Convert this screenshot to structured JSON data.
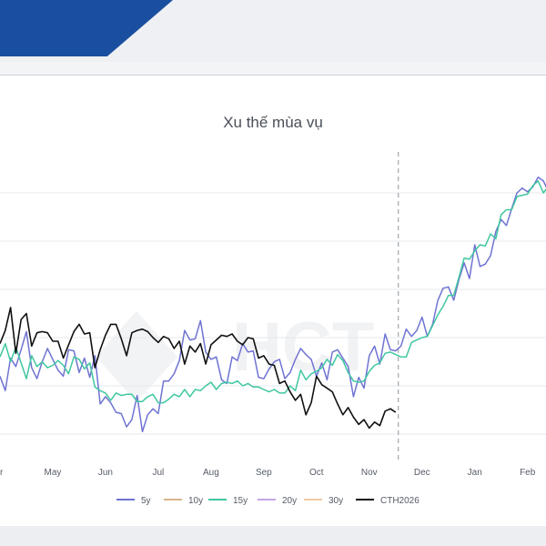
{
  "chart_data": {
    "type": "line",
    "title": "Xu thế mùa vụ",
    "xlabel": "",
    "ylabel": "",
    "x_ticks": [
      "Apr",
      "May",
      "Jun",
      "Jul",
      "Aug",
      "Sep",
      "Oct",
      "Nov",
      "Dec",
      "Jan",
      "Feb"
    ],
    "x_tick_display": [
      "r",
      "May",
      "Jun",
      "Jul",
      "Aug",
      "Sep",
      "Oct",
      "Nov",
      "Dec",
      "Jan",
      "Feb"
    ],
    "today_marker": 7.55,
    "grid": "horizontal",
    "legend_position": "bottom",
    "watermark": "HCT",
    "colors": {
      "5y": "#6f73d2",
      "10y": "#d9b48a",
      "15y": "#3fc7a0",
      "20y": "#c5a4e6",
      "30y": "#f0c8a0",
      "CTH2026": "#111111"
    },
    "series": [
      {
        "name": "5y",
        "x": [
          0.0,
          0.1,
          0.2,
          0.3,
          0.4,
          0.5,
          0.6,
          0.7,
          0.8,
          0.9,
          1.0,
          1.1,
          1.2,
          1.3,
          1.4,
          1.5,
          1.6,
          1.7,
          1.8,
          1.9,
          2.0,
          2.1,
          2.2,
          2.3,
          2.4,
          2.5,
          2.6,
          2.7,
          2.8,
          2.9,
          3.0,
          3.1,
          3.2,
          3.3,
          3.4,
          3.5,
          3.6,
          3.7,
          3.8,
          3.9,
          4.0,
          4.1,
          4.2,
          4.3,
          4.4,
          4.5,
          4.6,
          4.7,
          4.8,
          4.9,
          5.0,
          5.1,
          5.2,
          5.3,
          5.4,
          5.5,
          5.6,
          5.7,
          5.8,
          5.9,
          6.0,
          6.1,
          6.2,
          6.3,
          6.4,
          6.5,
          6.6,
          6.7,
          6.8,
          6.9,
          7.0,
          7.1,
          7.2,
          7.3,
          7.4,
          7.5,
          7.6,
          7.7,
          7.8,
          7.9,
          8.0,
          8.1,
          8.2,
          8.3,
          8.4,
          8.5,
          8.6,
          8.7,
          8.8,
          8.9,
          9.0,
          9.1,
          9.2,
          9.3,
          9.4,
          9.5,
          9.6,
          9.7,
          9.8,
          9.9,
          10.0,
          10.1,
          10.2,
          10.3,
          10.4
        ],
        "values": [
          4.8,
          3.6,
          6.3,
          5.6,
          7.0,
          8.5,
          5.5,
          4.6,
          6.0,
          7.1,
          6.2,
          5.3,
          4.8,
          7.0,
          6.9,
          5.1,
          6.3,
          4.7,
          6.5,
          2.5,
          3.1,
          2.6,
          1.8,
          1.7,
          0.6,
          1.2,
          3.2,
          0.2,
          1.6,
          2.1,
          1.7,
          4.4,
          4.4,
          5.0,
          6.1,
          8.6,
          7.8,
          7.9,
          9.4,
          6.8,
          6.2,
          6.4,
          4.5,
          4.2,
          6.4,
          6.1,
          7.5,
          6.8,
          6.9,
          4.7,
          4.6,
          5.4,
          6.0,
          6.2,
          4.6,
          5.1,
          6.2,
          7.1,
          6.6,
          6.2,
          4.8,
          5.9,
          4.5,
          6.8,
          7.0,
          6.3,
          5.6,
          3.1,
          4.7,
          3.8,
          6.5,
          7.3,
          5.8,
          8.3,
          7.0,
          6.9,
          7.3,
          8.7,
          8.1,
          8.6,
          9.7,
          8.1,
          9.1,
          11.1,
          12.1,
          12.2,
          11.1,
          12.8,
          14.2,
          12.9,
          15.7,
          13.9,
          14.1,
          14.8,
          16.8,
          17.8,
          17.3,
          18.7,
          20.0,
          20.4,
          20.1,
          20.5,
          21.3,
          21.0,
          20.1
        ]
      },
      {
        "name": "10y",
        "x": [],
        "values": []
      },
      {
        "name": "15y",
        "x": [
          0.0,
          0.1,
          0.2,
          0.3,
          0.4,
          0.5,
          0.6,
          0.7,
          0.8,
          0.9,
          1.0,
          1.1,
          1.2,
          1.3,
          1.4,
          1.5,
          1.6,
          1.7,
          1.8,
          1.9,
          2.0,
          2.1,
          2.2,
          2.3,
          2.4,
          2.5,
          2.6,
          2.7,
          2.8,
          2.9,
          3.0,
          3.1,
          3.2,
          3.3,
          3.4,
          3.5,
          3.6,
          3.7,
          3.8,
          3.9,
          4.0,
          4.1,
          4.2,
          4.3,
          4.4,
          4.5,
          4.6,
          4.7,
          4.8,
          4.9,
          5.0,
          5.1,
          5.2,
          5.3,
          5.4,
          5.5,
          5.6,
          5.7,
          5.8,
          5.9,
          6.0,
          6.1,
          6.2,
          6.3,
          6.4,
          6.5,
          6.6,
          6.7,
          6.8,
          6.9,
          7.0,
          7.1,
          7.2,
          7.3,
          7.4,
          7.5,
          7.6,
          7.7,
          7.8,
          7.9,
          8.0,
          8.1,
          8.2,
          8.3,
          8.4,
          8.5,
          8.6,
          8.7,
          8.8,
          8.9,
          9.0,
          9.1,
          9.2,
          9.3,
          9.4,
          9.5,
          9.6,
          9.7,
          9.8,
          9.9,
          10.0,
          10.1,
          10.2,
          10.3,
          10.4
        ],
        "values": [
          6.4,
          7.5,
          6.0,
          7.2,
          5.9,
          4.6,
          6.5,
          5.6,
          6.0,
          5.5,
          5.7,
          6.1,
          5.7,
          5.0,
          6.4,
          6.2,
          5.4,
          5.9,
          3.9,
          3.6,
          3.4,
          2.8,
          3.4,
          3.2,
          3.3,
          3.3,
          2.7,
          2.7,
          3.1,
          3.3,
          2.6,
          2.6,
          2.9,
          3.3,
          3.1,
          3.7,
          3.1,
          3.7,
          3.6,
          4.0,
          4.3,
          3.7,
          4.2,
          4.3,
          4.2,
          4.4,
          4.0,
          4.2,
          3.9,
          3.9,
          3.7,
          3.5,
          3.7,
          3.4,
          3.4,
          4.0,
          3.6,
          5.3,
          4.5,
          5.0,
          5.2,
          5.5,
          6.2,
          5.7,
          6.6,
          6.1,
          5.1,
          4.4,
          4.3,
          4.4,
          5.2,
          5.7,
          5.9,
          6.7,
          6.8,
          6.6,
          6.4,
          6.4,
          7.6,
          7.8,
          8.0,
          8.1,
          9.0,
          9.9,
          10.6,
          11.5,
          11.5,
          13.0,
          14.6,
          14.5,
          15.2,
          15.7,
          15.6,
          16.6,
          16.2,
          18.2,
          18.6,
          18.6,
          19.7,
          19.8,
          19.9,
          20.6,
          21.0,
          20.0,
          20.6
        ]
      },
      {
        "name": "20y",
        "x": [],
        "values": []
      },
      {
        "name": "30y",
        "x": [],
        "values": []
      },
      {
        "name": "CTH2026",
        "x": [
          0.0,
          0.1,
          0.2,
          0.3,
          0.4,
          0.5,
          0.6,
          0.7,
          0.8,
          0.9,
          1.0,
          1.1,
          1.2,
          1.3,
          1.4,
          1.5,
          1.6,
          1.7,
          1.8,
          1.9,
          2.0,
          2.1,
          2.2,
          2.3,
          2.4,
          2.5,
          2.6,
          2.7,
          2.8,
          2.9,
          3.0,
          3.1,
          3.2,
          3.3,
          3.4,
          3.5,
          3.6,
          3.7,
          3.8,
          3.9,
          4.0,
          4.1,
          4.2,
          4.3,
          4.4,
          4.5,
          4.6,
          4.7,
          4.8,
          4.9,
          5.0,
          5.1,
          5.2,
          5.3,
          5.4,
          5.5,
          5.6,
          5.7,
          5.8,
          5.9,
          6.0,
          6.1,
          6.2,
          6.3,
          6.4,
          6.5,
          6.6,
          6.7,
          6.8,
          6.9,
          7.0,
          7.1,
          7.2,
          7.3,
          7.4,
          7.5
        ],
        "values": [
          7.5,
          8.6,
          10.5,
          6.7,
          9.5,
          10.0,
          7.3,
          8.4,
          8.5,
          8.4,
          7.7,
          7.7,
          6.3,
          7.4,
          8.5,
          9.1,
          8.3,
          8.4,
          5.5,
          7.0,
          8.2,
          9.1,
          9.1,
          7.9,
          6.5,
          8.4,
          8.6,
          8.7,
          8.5,
          8.0,
          7.6,
          8.1,
          7.9,
          7.1,
          7.7,
          5.8,
          7.3,
          6.8,
          7.5,
          5.8,
          7.4,
          7.8,
          8.2,
          8.1,
          8.3,
          7.7,
          7.4,
          8.0,
          7.9,
          6.3,
          6.5,
          5.8,
          5.7,
          4.2,
          4.4,
          3.5,
          2.8,
          3.3,
          1.6,
          2.6,
          4.8,
          4.1,
          3.8,
          3.5,
          2.5,
          1.6,
          2.2,
          1.4,
          0.8,
          1.2,
          0.5,
          1.0,
          0.7,
          1.9,
          2.1,
          1.8
        ]
      }
    ],
    "legend": [
      "5y",
      "10y",
      "15y",
      "20y",
      "30y",
      "CTH2026"
    ]
  }
}
